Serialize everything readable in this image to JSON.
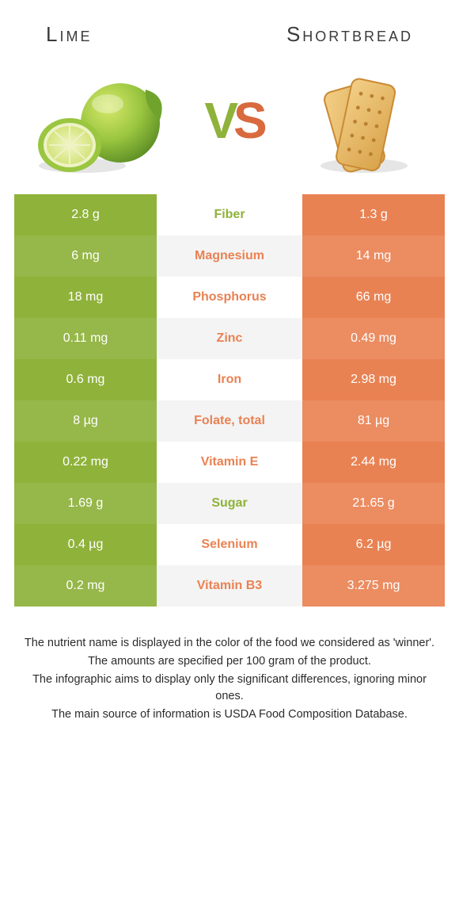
{
  "colors": {
    "lime": "#8fb23a",
    "lime_alt": "#96b749",
    "short": "#e98253",
    "short_alt": "#eb8c61",
    "mid_bg_a": "#ffffff",
    "mid_bg_b": "#f4f4f4",
    "text_dark": "#3a3a3a"
  },
  "header": {
    "left_title": "Lime",
    "right_title": "Shortbread",
    "vs_v": "V",
    "vs_s": "S"
  },
  "rows": [
    {
      "label": "Fiber",
      "left": "2.8 g",
      "right": "1.3 g",
      "winner": "lime"
    },
    {
      "label": "Magnesium",
      "left": "6 mg",
      "right": "14 mg",
      "winner": "short"
    },
    {
      "label": "Phosphorus",
      "left": "18 mg",
      "right": "66 mg",
      "winner": "short"
    },
    {
      "label": "Zinc",
      "left": "0.11 mg",
      "right": "0.49 mg",
      "winner": "short"
    },
    {
      "label": "Iron",
      "left": "0.6 mg",
      "right": "2.98 mg",
      "winner": "short"
    },
    {
      "label": "Folate, total",
      "left": "8 µg",
      "right": "81 µg",
      "winner": "short"
    },
    {
      "label": "Vitamin E",
      "left": "0.22 mg",
      "right": "2.44 mg",
      "winner": "short"
    },
    {
      "label": "Sugar",
      "left": "1.69 g",
      "right": "21.65 g",
      "winner": "lime"
    },
    {
      "label": "Selenium",
      "left": "0.4 µg",
      "right": "6.2 µg",
      "winner": "short"
    },
    {
      "label": "Vitamin B3",
      "left": "0.2 mg",
      "right": "3.275 mg",
      "winner": "short"
    }
  ],
  "notes": [
    "The nutrient name is displayed in the color of the food we considered as 'winner'.",
    "The amounts are specified per 100 gram of the product.",
    "The infographic aims to display only the significant differences, ignoring minor ones.",
    "The main source of information is USDA Food Composition Database."
  ]
}
